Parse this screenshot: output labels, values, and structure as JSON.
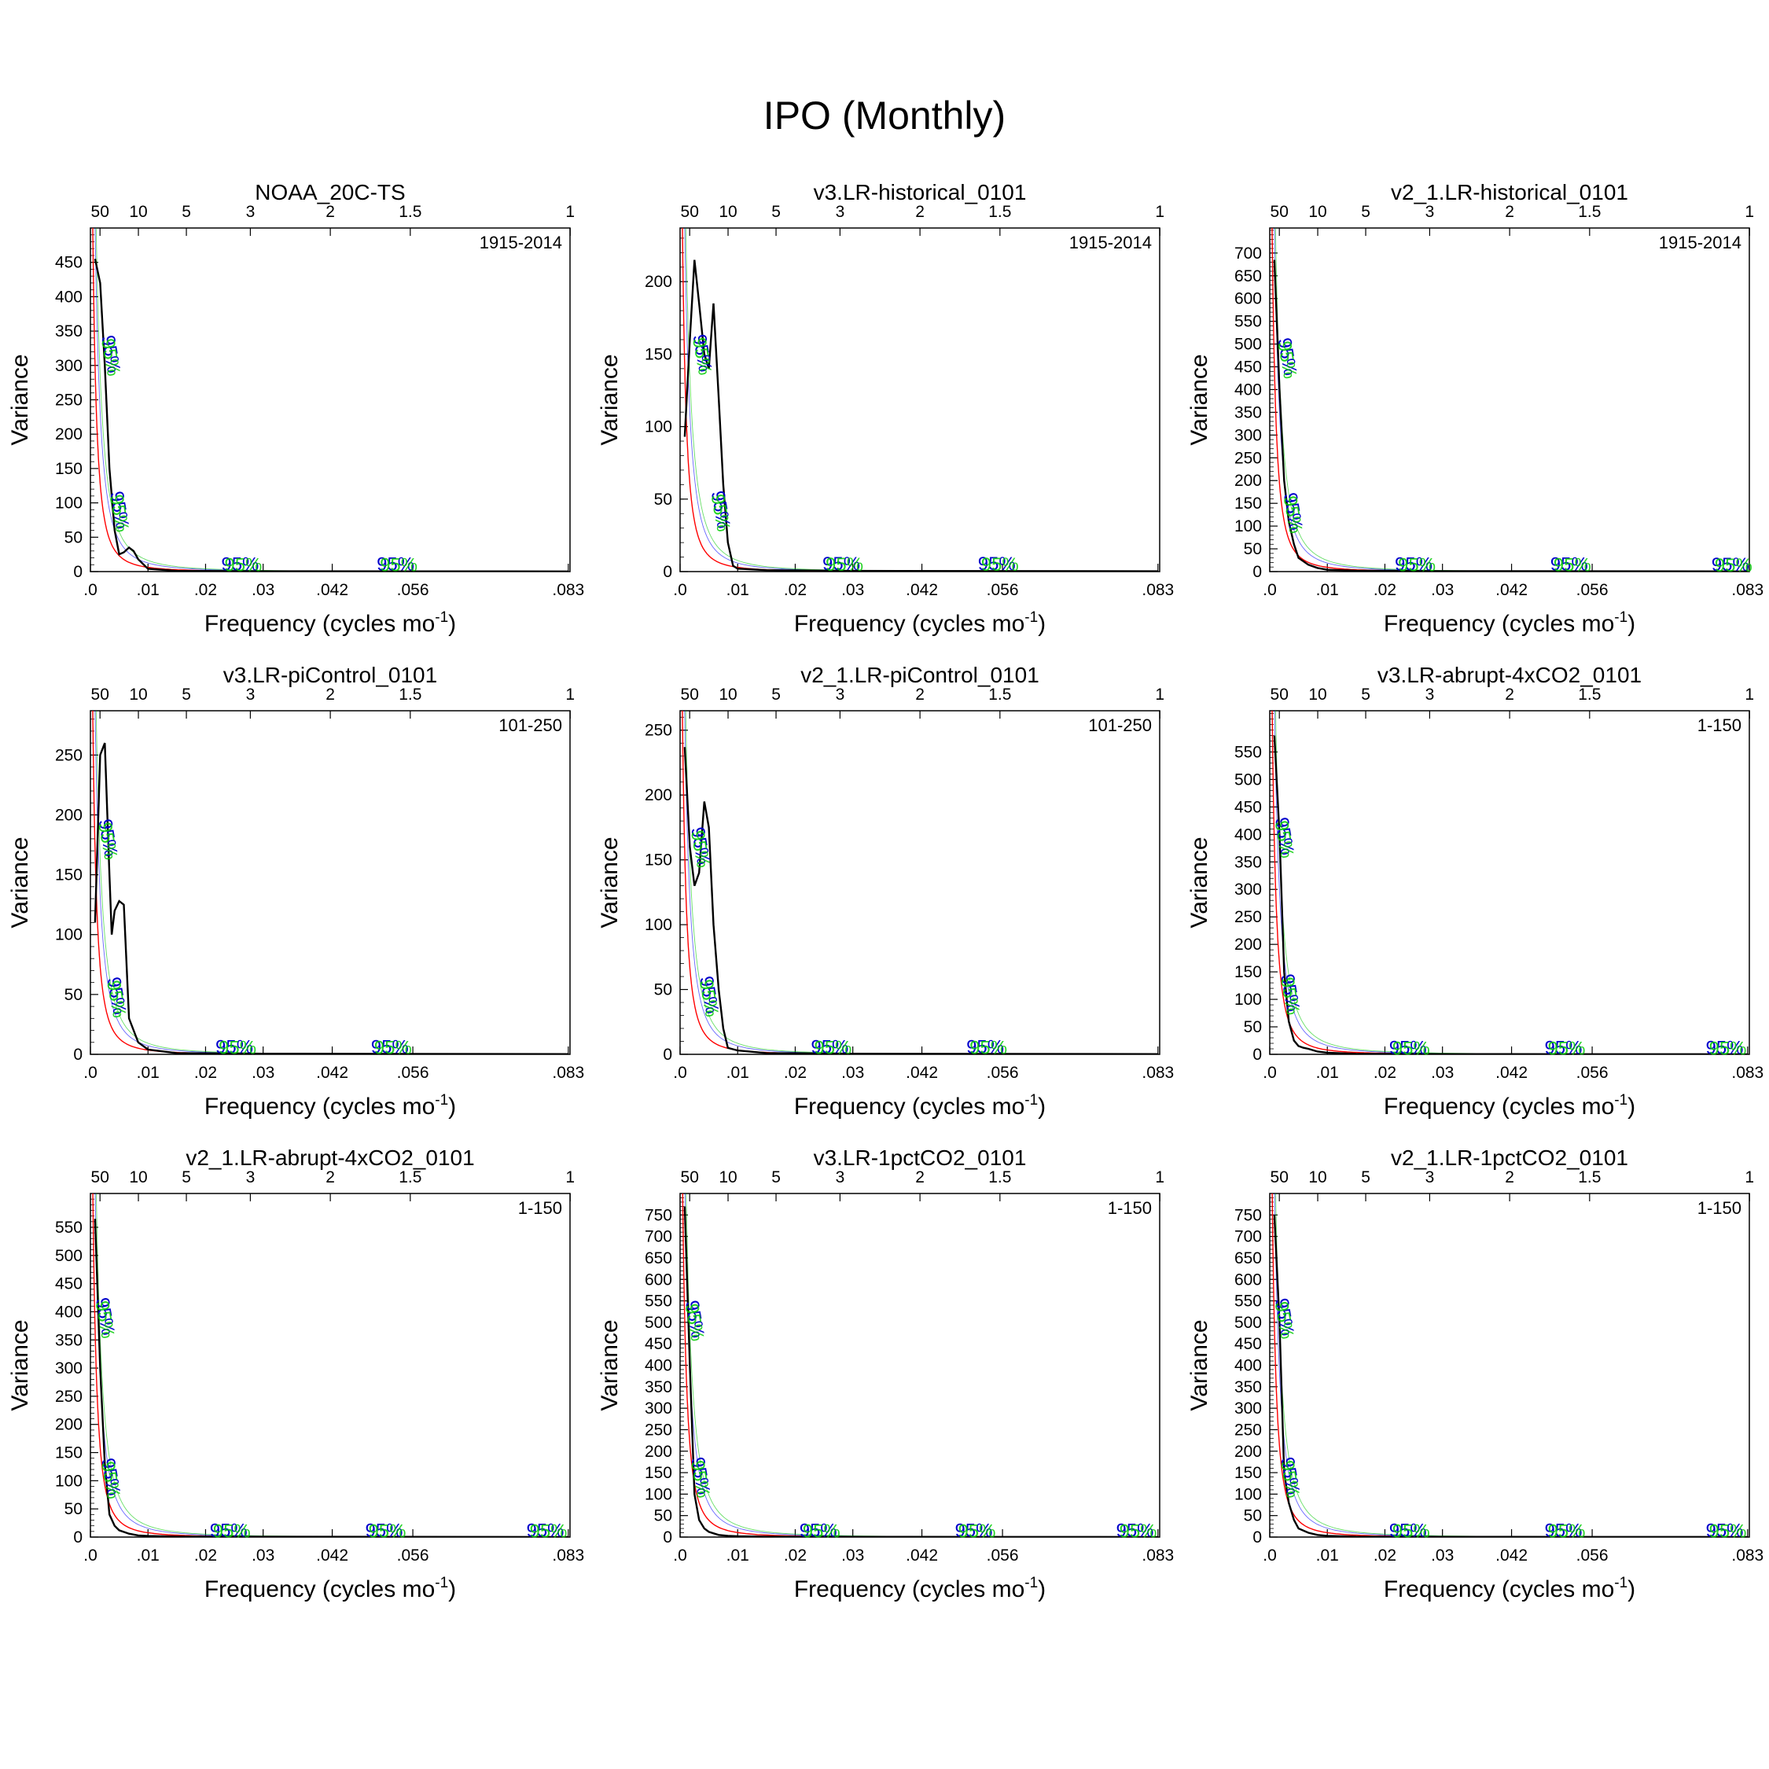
{
  "title": "IPO (Monthly)",
  "axis_labels": {
    "y": "Variance",
    "x_prefix": "Frequency (cycles mo",
    "x_exponent": "-1",
    "x_suffix": ")"
  },
  "significance_label": "95%",
  "colors": {
    "spectrum": "#000000",
    "red_noise": "#ff0000",
    "lower_ci": "#0000ff",
    "upper_ci": "#00c800",
    "label_95_blue": "#0000cc",
    "label_95_green": "#00cc00"
  },
  "chart_data": [
    {
      "type": "line",
      "title": "NOAA_20C-TS",
      "period": "1915-2014",
      "xlim": [
        0,
        0.0833
      ],
      "ylim": [
        0,
        500
      ],
      "yticks": [
        0,
        50,
        100,
        150,
        200,
        250,
        300,
        350,
        400,
        450
      ],
      "xticks": [
        ".0",
        ".01",
        ".02",
        ".03",
        ".042",
        ".056",
        ".083"
      ],
      "xtick_values": [
        0,
        0.01,
        0.02,
        0.03,
        0.042,
        0.056,
        0.083
      ],
      "period_ticks": [
        "50",
        "10",
        "5",
        "3",
        "2",
        "1.5",
        "1"
      ],
      "spectrum_peak": 455,
      "series": [
        {
          "name": "spectrum",
          "x": [
            0.0008,
            0.0017,
            0.0025,
            0.0033,
            0.0042,
            0.005,
            0.0058,
            0.0067,
            0.0075,
            0.0083,
            0.01,
            0.015,
            0.03,
            0.083
          ],
          "y": [
            455,
            420,
            300,
            150,
            60,
            25,
            28,
            35,
            30,
            18,
            4,
            1,
            0.5,
            0.2
          ]
        }
      ],
      "labels_95": [
        [
          0.0025,
          315
        ],
        [
          0.004,
          88
        ],
        [
          0.026,
          2
        ],
        [
          0.053,
          2
        ]
      ]
    },
    {
      "type": "line",
      "title": "v3.LR-historical_0101",
      "period": "1915-2014",
      "xlim": [
        0,
        0.0833
      ],
      "ylim": [
        0,
        237
      ],
      "yticks": [
        0,
        50,
        100,
        150,
        200
      ],
      "xticks": [
        ".0",
        ".01",
        ".02",
        ".03",
        ".042",
        ".056",
        ".083"
      ],
      "xtick_values": [
        0,
        0.01,
        0.02,
        0.03,
        0.042,
        0.056,
        0.083
      ],
      "period_ticks": [
        "50",
        "10",
        "5",
        "3",
        "2",
        "1.5",
        "1"
      ],
      "spectrum_peak": 215,
      "series": [
        {
          "name": "spectrum",
          "x": [
            0.0008,
            0.0017,
            0.0025,
            0.0033,
            0.0042,
            0.005,
            0.0058,
            0.0067,
            0.0075,
            0.0083,
            0.0092,
            0.01,
            0.015,
            0.03,
            0.083
          ],
          "y": [
            93,
            160,
            215,
            185,
            150,
            140,
            185,
            120,
            60,
            20,
            4,
            2,
            1,
            0.5,
            0.2
          ]
        }
      ],
      "labels_95": [
        [
          0.0028,
          150
        ],
        [
          0.006,
          42
        ],
        [
          0.028,
          1
        ],
        [
          0.055,
          1
        ]
      ]
    },
    {
      "type": "line",
      "title": "v2_1.LR-historical_0101",
      "period": "1915-2014",
      "xlim": [
        0,
        0.0833
      ],
      "ylim": [
        0,
        755
      ],
      "yticks": [
        0,
        50,
        100,
        150,
        200,
        250,
        300,
        350,
        400,
        450,
        500,
        550,
        600,
        650,
        700
      ],
      "xticks": [
        ".0",
        ".01",
        ".02",
        ".03",
        ".042",
        ".056",
        ".083"
      ],
      "xtick_values": [
        0,
        0.01,
        0.02,
        0.03,
        0.042,
        0.056,
        0.083
      ],
      "period_ticks": [
        "50",
        "10",
        "5",
        "3",
        "2",
        "1.5",
        "1"
      ],
      "spectrum_peak": 685,
      "series": [
        {
          "name": "spectrum",
          "x": [
            0.0008,
            0.0017,
            0.0025,
            0.0033,
            0.0042,
            0.005,
            0.0067,
            0.0083,
            0.01,
            0.015,
            0.03,
            0.083
          ],
          "y": [
            685,
            400,
            200,
            110,
            60,
            30,
            15,
            8,
            4,
            2,
            1,
            0.3
          ]
        }
      ],
      "labels_95": [
        [
          0.002,
          470
        ],
        [
          0.003,
          130
        ],
        [
          0.025,
          3
        ],
        [
          0.052,
          3
        ],
        [
          0.08,
          2
        ]
      ]
    },
    {
      "type": "line",
      "title": "v3.LR-piControl_0101",
      "period": "101-250",
      "xlim": [
        0,
        0.0833
      ],
      "ylim": [
        0,
        287
      ],
      "yticks": [
        0,
        50,
        100,
        150,
        200,
        250
      ],
      "xticks": [
        ".0",
        ".01",
        ".02",
        ".03",
        ".042",
        ".056",
        ".083"
      ],
      "xtick_values": [
        0,
        0.01,
        0.02,
        0.03,
        0.042,
        0.056,
        0.083
      ],
      "period_ticks": [
        "50",
        "10",
        "5",
        "3",
        "2",
        "1.5",
        "1"
      ],
      "spectrum_peak": 260,
      "series": [
        {
          "name": "spectrum",
          "x": [
            0.0008,
            0.0017,
            0.0025,
            0.0033,
            0.0037,
            0.0042,
            0.005,
            0.0058,
            0.0067,
            0.0083,
            0.01,
            0.015,
            0.03,
            0.083
          ],
          "y": [
            110,
            250,
            260,
            150,
            100,
            120,
            128,
            125,
            30,
            10,
            4,
            1,
            0.5,
            0.2
          ]
        }
      ],
      "labels_95": [
        [
          0.002,
          180
        ],
        [
          0.0035,
          48
        ],
        [
          0.025,
          1
        ],
        [
          0.052,
          1
        ]
      ]
    },
    {
      "type": "line",
      "title": "v2_1.LR-piControl_0101",
      "period": "101-250",
      "xlim": [
        0,
        0.0833
      ],
      "ylim": [
        0,
        265
      ],
      "yticks": [
        0,
        50,
        100,
        150,
        200,
        250
      ],
      "xticks": [
        ".0",
        ".01",
        ".02",
        ".03",
        ".042",
        ".056",
        ".083"
      ],
      "xtick_values": [
        0,
        0.01,
        0.02,
        0.03,
        0.042,
        0.056,
        0.083
      ],
      "period_ticks": [
        "50",
        "10",
        "5",
        "3",
        "2",
        "1.5",
        "1"
      ],
      "spectrum_peak": 237,
      "series": [
        {
          "name": "spectrum",
          "x": [
            0.0008,
            0.0017,
            0.0025,
            0.0033,
            0.0042,
            0.005,
            0.0058,
            0.0067,
            0.0075,
            0.0083,
            0.01,
            0.015,
            0.03,
            0.083
          ],
          "y": [
            237,
            160,
            130,
            140,
            195,
            175,
            100,
            50,
            20,
            5,
            3,
            1,
            0.5,
            0.2
          ]
        }
      ],
      "labels_95": [
        [
          0.0025,
          160
        ],
        [
          0.004,
          45
        ],
        [
          0.026,
          1
        ],
        [
          0.053,
          1
        ]
      ]
    },
    {
      "type": "line",
      "title": "v3.LR-abrupt-4xCO2_0101",
      "period": "1-150",
      "xlim": [
        0,
        0.0833
      ],
      "ylim": [
        0,
        625
      ],
      "yticks": [
        0,
        50,
        100,
        150,
        200,
        250,
        300,
        350,
        400,
        450,
        500,
        550
      ],
      "xticks": [
        ".0",
        ".01",
        ".02",
        ".03",
        ".042",
        ".056",
        ".083"
      ],
      "xtick_values": [
        0,
        0.01,
        0.02,
        0.03,
        0.042,
        0.056,
        0.083
      ],
      "period_ticks": [
        "50",
        "10",
        "5",
        "3",
        "2",
        "1.5",
        "1"
      ],
      "spectrum_peak": 580,
      "series": [
        {
          "name": "spectrum",
          "x": [
            0.0008,
            0.0017,
            0.0025,
            0.0033,
            0.0042,
            0.005,
            0.0058,
            0.0067,
            0.0083,
            0.01,
            0.015,
            0.03,
            0.083
          ],
          "y": [
            580,
            400,
            150,
            60,
            25,
            15,
            12,
            10,
            5,
            3,
            1,
            0.5,
            0.2
          ]
        }
      ],
      "labels_95": [
        [
          0.0015,
          395
        ],
        [
          0.0025,
          110
        ],
        [
          0.024,
          1
        ],
        [
          0.051,
          1
        ],
        [
          0.079,
          1
        ]
      ]
    },
    {
      "type": "line",
      "title": "v2_1.LR-abrupt-4xCO2_0101",
      "period": "1-150",
      "xlim": [
        0,
        0.0833
      ],
      "ylim": [
        0,
        610
      ],
      "yticks": [
        0,
        50,
        100,
        150,
        200,
        250,
        300,
        350,
        400,
        450,
        500,
        550
      ],
      "xticks": [
        ".0",
        ".01",
        ".02",
        ".03",
        ".042",
        ".056",
        ".083"
      ],
      "xtick_values": [
        0,
        0.01,
        0.02,
        0.03,
        0.042,
        0.056,
        0.083
      ],
      "period_ticks": [
        "50",
        "10",
        "5",
        "3",
        "2",
        "1.5",
        "1"
      ],
      "spectrum_peak": 565,
      "series": [
        {
          "name": "spectrum",
          "x": [
            0.0008,
            0.0017,
            0.0025,
            0.0033,
            0.0042,
            0.005,
            0.0067,
            0.0083,
            0.01,
            0.015,
            0.03,
            0.083
          ],
          "y": [
            565,
            300,
            130,
            40,
            20,
            12,
            6,
            3,
            2,
            1,
            0.5,
            0.2
          ]
        }
      ],
      "labels_95": [
        [
          0.0015,
          390
        ],
        [
          0.0025,
          105
        ],
        [
          0.024,
          1
        ],
        [
          0.051,
          1
        ],
        [
          0.079,
          1
        ]
      ]
    },
    {
      "type": "line",
      "title": "v3.LR-1pctCO2_0101",
      "period": "1-150",
      "xlim": [
        0,
        0.0833
      ],
      "ylim": [
        0,
        800
      ],
      "yticks": [
        0,
        50,
        100,
        150,
        200,
        250,
        300,
        350,
        400,
        450,
        500,
        550,
        600,
        650,
        700,
        750
      ],
      "xticks": [
        ".0",
        ".01",
        ".02",
        ".03",
        ".042",
        ".056",
        ".083"
      ],
      "xtick_values": [
        0,
        0.01,
        0.02,
        0.03,
        0.042,
        0.056,
        0.083
      ],
      "period_ticks": [
        "50",
        "10",
        "5",
        "3",
        "2",
        "1.5",
        "1"
      ],
      "spectrum_peak": 770,
      "series": [
        {
          "name": "spectrum",
          "x": [
            0.0008,
            0.0017,
            0.0025,
            0.0033,
            0.0042,
            0.005,
            0.0067,
            0.0083,
            0.01,
            0.015,
            0.03,
            0.083
          ],
          "y": [
            770,
            400,
            100,
            40,
            20,
            12,
            5,
            3,
            2,
            1,
            0.5,
            0.2
          ]
        }
      ],
      "labels_95": [
        [
          0.0015,
          505
        ],
        [
          0.0025,
          140
        ],
        [
          0.024,
          1
        ],
        [
          0.051,
          1
        ],
        [
          0.079,
          1
        ]
      ]
    },
    {
      "type": "line",
      "title": "v2_1.LR-1pctCO2_0101",
      "period": "1-150",
      "xlim": [
        0,
        0.0833
      ],
      "ylim": [
        0,
        800
      ],
      "yticks": [
        0,
        50,
        100,
        150,
        200,
        250,
        300,
        350,
        400,
        450,
        500,
        550,
        600,
        650,
        700,
        750
      ],
      "xticks": [
        ".0",
        ".01",
        ".02",
        ".03",
        ".042",
        ".056",
        ".083"
      ],
      "xtick_values": [
        0,
        0.01,
        0.02,
        0.03,
        0.042,
        0.056,
        0.083
      ],
      "period_ticks": [
        "50",
        "10",
        "5",
        "3",
        "2",
        "1.5",
        "1"
      ],
      "spectrum_peak": 750,
      "series": [
        {
          "name": "spectrum",
          "x": [
            0.0008,
            0.0017,
            0.0025,
            0.0033,
            0.0042,
            0.005,
            0.0067,
            0.0083,
            0.01,
            0.015,
            0.03,
            0.083
          ],
          "y": [
            750,
            500,
            150,
            80,
            40,
            20,
            10,
            5,
            3,
            1,
            0.5,
            0.2
          ]
        }
      ],
      "labels_95": [
        [
          0.0015,
          510
        ],
        [
          0.0025,
          140
        ],
        [
          0.024,
          1
        ],
        [
          0.051,
          1
        ],
        [
          0.079,
          1
        ]
      ]
    }
  ]
}
